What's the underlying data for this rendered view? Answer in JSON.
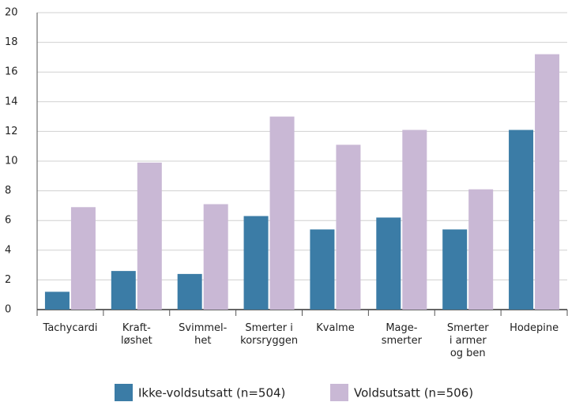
{
  "chart_data": {
    "type": "bar",
    "categories": [
      "Tachycardi",
      "Kraft-\nløshet",
      "Svimmel-\nhet",
      "Smerter i\nkorsryggen",
      "Kvalme",
      "Mage-\nsmerter",
      "Smerter\ni armer\nog ben",
      "Hodepine"
    ],
    "series": [
      {
        "name": "Ikke-voldsutsatt (n=504)",
        "color": "#3b7ca6",
        "values": [
          1.2,
          2.6,
          2.4,
          6.3,
          5.4,
          6.2,
          5.4,
          12.1
        ]
      },
      {
        "name": "Voldsutsatt (n=506)",
        "color": "#c9b8d5",
        "values": [
          6.9,
          9.9,
          7.1,
          13.0,
          11.1,
          12.1,
          8.1,
          17.2
        ]
      }
    ],
    "ylim": [
      0,
      20
    ],
    "yticks": [
      0,
      2,
      4,
      6,
      8,
      10,
      12,
      14,
      16,
      18,
      20
    ],
    "grid": true
  }
}
